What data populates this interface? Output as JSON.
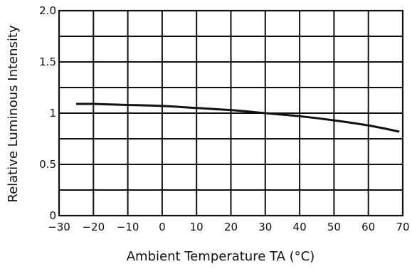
{
  "chart_data": {
    "type": "line",
    "xlabel": "Ambient Temperature TA (°C)",
    "ylabel": "Relative Luminous Intensity",
    "xlim": [
      -30,
      70
    ],
    "ylim": [
      0,
      2.0
    ],
    "x_ticks": [
      "−30",
      "−20",
      "−10",
      "0",
      "10",
      "20",
      "30",
      "40",
      "50",
      "60",
      "70"
    ],
    "y_ticks": [
      "0",
      "0.5",
      "1",
      "1.5",
      "2.0"
    ],
    "grid": true,
    "series": [
      {
        "x": [
          -25,
          -20,
          -10,
          0,
          10,
          20,
          30,
          40,
          50,
          60,
          69
        ],
        "values": [
          1.09,
          1.09,
          1.08,
          1.07,
          1.05,
          1.03,
          1.0,
          0.97,
          0.93,
          0.88,
          0.82
        ]
      }
    ]
  }
}
